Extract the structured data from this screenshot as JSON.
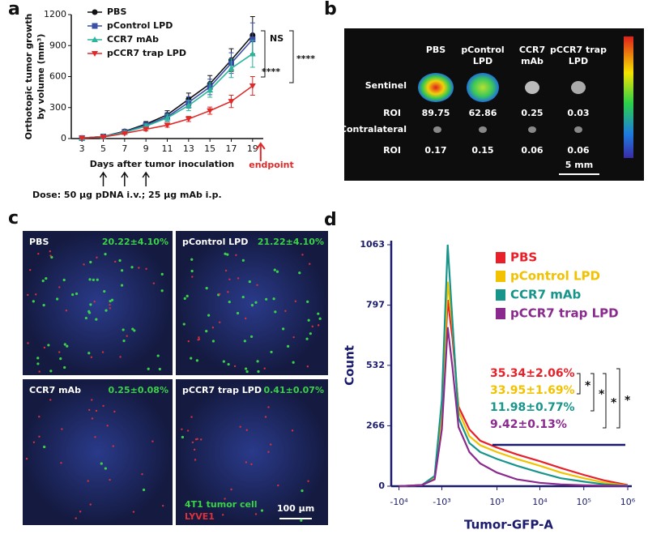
{
  "panel_labels": [
    "a",
    "b",
    "c",
    "d"
  ],
  "chart_data": [
    {
      "type": "line",
      "ylabel": [
        "Orthotopic tumor growth",
        "by volume (mm³)"
      ],
      "xlabel": "Days after tumor inoculation",
      "x": [
        3,
        5,
        7,
        9,
        11,
        13,
        15,
        17,
        19
      ],
      "xlim": [
        2,
        20
      ],
      "xticks": [
        3,
        5,
        7,
        9,
        11,
        13,
        15,
        17,
        19
      ],
      "ylim": [
        0,
        1200
      ],
      "yticks": [
        0,
        300,
        600,
        900,
        1200
      ],
      "legend": "top-left",
      "series": [
        {
          "name": "PBS",
          "color": "#111111",
          "marker": "circle",
          "values": [
            5,
            20,
            70,
            140,
            230,
            380,
            530,
            760,
            1000
          ],
          "errors": [
            8,
            10,
            15,
            25,
            40,
            60,
            80,
            110,
            180
          ]
        },
        {
          "name": "pControl LPD",
          "color": "#3b4fa8",
          "marker": "square",
          "values": [
            5,
            20,
            65,
            130,
            210,
            350,
            500,
            730,
            960
          ],
          "errors": [
            8,
            10,
            15,
            25,
            40,
            55,
            75,
            100,
            160
          ]
        },
        {
          "name": "CCR7 mAb",
          "color": "#2bb59a",
          "marker": "triangle-up",
          "values": [
            5,
            20,
            60,
            120,
            200,
            320,
            470,
            680,
            820
          ],
          "errors": [
            8,
            10,
            15,
            20,
            35,
            50,
            70,
            90,
            130
          ]
        },
        {
          "name": "pCCR7 trap LPD",
          "color": "#e02a2a",
          "marker": "triangle-down",
          "values": [
            5,
            15,
            50,
            90,
            130,
            190,
            270,
            360,
            510
          ],
          "errors": [
            5,
            8,
            10,
            15,
            20,
            25,
            35,
            60,
            90
          ]
        }
      ],
      "annotations": {
        "ns": "NS",
        "sig_inner": "****",
        "sig_outer": "****",
        "endpoint": "endpoint",
        "dose": "Dose: 50 μg pDNA i.v.; 25 μg mAb i.p."
      }
    },
    {
      "type": "line",
      "xscale": "biexponential",
      "ylabel": "Count",
      "xlabel": "Tumor-GFP-A",
      "x": [
        -10000,
        -3000,
        -1500,
        -1000,
        -700,
        -500,
        -300,
        0,
        300,
        1000,
        3000,
        10000,
        30000,
        100000,
        300000,
        1000000
      ],
      "xlim": [
        -15000,
        1000000
      ],
      "xticks": [
        {
          "value": -10000,
          "label": "-10⁴"
        },
        {
          "value": -1000,
          "label": "-10³"
        },
        {
          "value": 1000,
          "label": "10³"
        },
        {
          "value": 10000,
          "label": "10⁴"
        },
        {
          "value": 100000,
          "label": "10⁵"
        },
        {
          "value": 1000000,
          "label": "10⁶"
        }
      ],
      "ylim": [
        0,
        1063
      ],
      "yticks": [
        0,
        266,
        532,
        797,
        1063
      ],
      "legend": "top-right",
      "series": [
        {
          "name": "PBS",
          "color": "#e8202a",
          "values": [
            0,
            5,
            40,
            300,
            820,
            650,
            350,
            250,
            200,
            170,
            140,
            110,
            80,
            50,
            25,
            5
          ],
          "label": "35.34±2.06%"
        },
        {
          "name": "pControl LPD",
          "color": "#f2c200",
          "values": [
            0,
            5,
            40,
            320,
            900,
            700,
            330,
            220,
            180,
            150,
            120,
            90,
            60,
            35,
            15,
            3
          ],
          "label": "33.95±1.69%"
        },
        {
          "name": "CCR7 mAb",
          "color": "#17958a",
          "values": [
            0,
            5,
            45,
            380,
            1063,
            720,
            300,
            190,
            150,
            120,
            90,
            60,
            35,
            20,
            8,
            2
          ],
          "label": "11.98±0.77%"
        },
        {
          "name": "pCCR7 trap LPD",
          "color": "#8a2a8e",
          "values": [
            0,
            5,
            30,
            250,
            700,
            520,
            260,
            150,
            100,
            60,
            30,
            15,
            8,
            4,
            2,
            1
          ],
          "label": "9.42±0.13%"
        }
      ],
      "significance": [
        "*",
        "*",
        "*",
        "*"
      ]
    }
  ],
  "imaging": {
    "columns": [
      [
        "PBS"
      ],
      [
        "pControl",
        "LPD"
      ],
      [
        "CCR7",
        "mAb"
      ],
      [
        "pCCR7 trap",
        "LPD"
      ]
    ],
    "row_labels": [
      "Sentinel",
      "ROI",
      "Contralateral",
      "ROI"
    ],
    "roi_sentinel": [
      89.75,
      62.86,
      0.25,
      0.03
    ],
    "roi_contralateral": [
      0.17,
      0.15,
      0.06,
      0.06
    ],
    "scale": "5 mm"
  },
  "micrographs": {
    "tiles": [
      {
        "name": "PBS",
        "percent": "20.22±4.10%"
      },
      {
        "name": "pControl LPD",
        "percent": "21.22±4.10%"
      },
      {
        "name": "CCR7 mAb",
        "percent": "0.25±0.08%"
      },
      {
        "name": "pCCR7 trap LPD",
        "percent": "0.41±0.07%"
      }
    ],
    "legend": [
      "4T1 tumor cell",
      "LYVE1"
    ],
    "scale": "100 μm"
  }
}
